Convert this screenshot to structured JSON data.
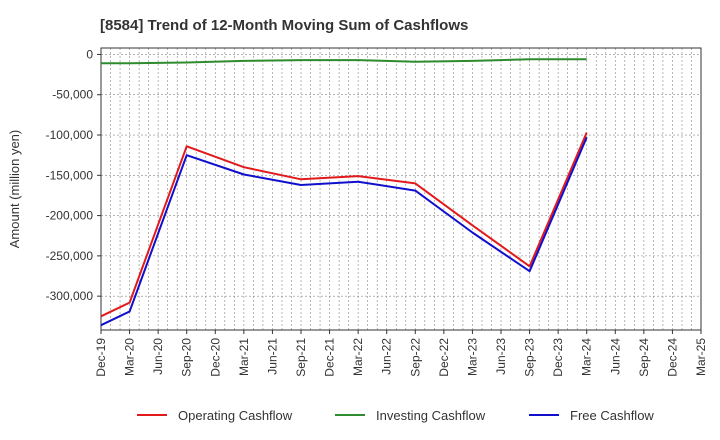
{
  "chart_data": {
    "type": "line",
    "title": "[8584]  Trend of 12-Month Moving Sum of Cashflows",
    "ylabel": "Amount (million yen)",
    "xlabel": "",
    "x": [
      "Dec-19",
      "Mar-20",
      "Jun-20",
      "Sep-20",
      "Dec-20",
      "Mar-21",
      "Jun-21",
      "Sep-21",
      "Dec-21",
      "Mar-22",
      "Jun-22",
      "Sep-22",
      "Dec-22",
      "Mar-23",
      "Jun-23",
      "Sep-23",
      "Dec-23",
      "Mar-24",
      "Jun-24",
      "Sep-24",
      "Dec-24",
      "Mar-25"
    ],
    "ylim": [
      -342000,
      8000
    ],
    "yticks": [
      0,
      -50000,
      -100000,
      -150000,
      -200000,
      -250000,
      -300000
    ],
    "ytick_labels": [
      "0",
      "-50,000",
      "-100,000",
      "-150,000",
      "-200,000",
      "-250,000",
      "-300,000"
    ],
    "grid": true,
    "legend_position": "bottom",
    "series": [
      {
        "name": "Operating Cashflow",
        "color": "#e31a1c",
        "points": [
          [
            "Dec-19",
            -325000
          ],
          [
            "Mar-20",
            -308000
          ],
          [
            "Sep-20",
            -114000
          ],
          [
            "Mar-21",
            -140000
          ],
          [
            "Sep-21",
            -155000
          ],
          [
            "Mar-22",
            -151000
          ],
          [
            "Sep-22",
            -160000
          ],
          [
            "Mar-23",
            -212000
          ],
          [
            "Sep-23",
            -263000
          ],
          [
            "Mar-24",
            -97000
          ]
        ]
      },
      {
        "name": "Investing Cashflow",
        "color": "#2e8b2e",
        "points": [
          [
            "Dec-19",
            -11000
          ],
          [
            "Mar-20",
            -11000
          ],
          [
            "Sep-20",
            -10000
          ],
          [
            "Mar-21",
            -8000
          ],
          [
            "Sep-21",
            -7000
          ],
          [
            "Mar-22",
            -7000
          ],
          [
            "Sep-22",
            -9000
          ],
          [
            "Mar-23",
            -8000
          ],
          [
            "Sep-23",
            -6000
          ],
          [
            "Mar-24",
            -6000
          ]
        ]
      },
      {
        "name": "Free Cashflow",
        "color": "#1010cc",
        "points": [
          [
            "Dec-19",
            -336000
          ],
          [
            "Mar-20",
            -319000
          ],
          [
            "Sep-20",
            -125000
          ],
          [
            "Mar-21",
            -149000
          ],
          [
            "Sep-21",
            -162000
          ],
          [
            "Mar-22",
            -158000
          ],
          [
            "Sep-22",
            -169000
          ],
          [
            "Mar-23",
            -221000
          ],
          [
            "Sep-23",
            -269000
          ],
          [
            "Mar-24",
            -103000
          ]
        ]
      }
    ]
  }
}
